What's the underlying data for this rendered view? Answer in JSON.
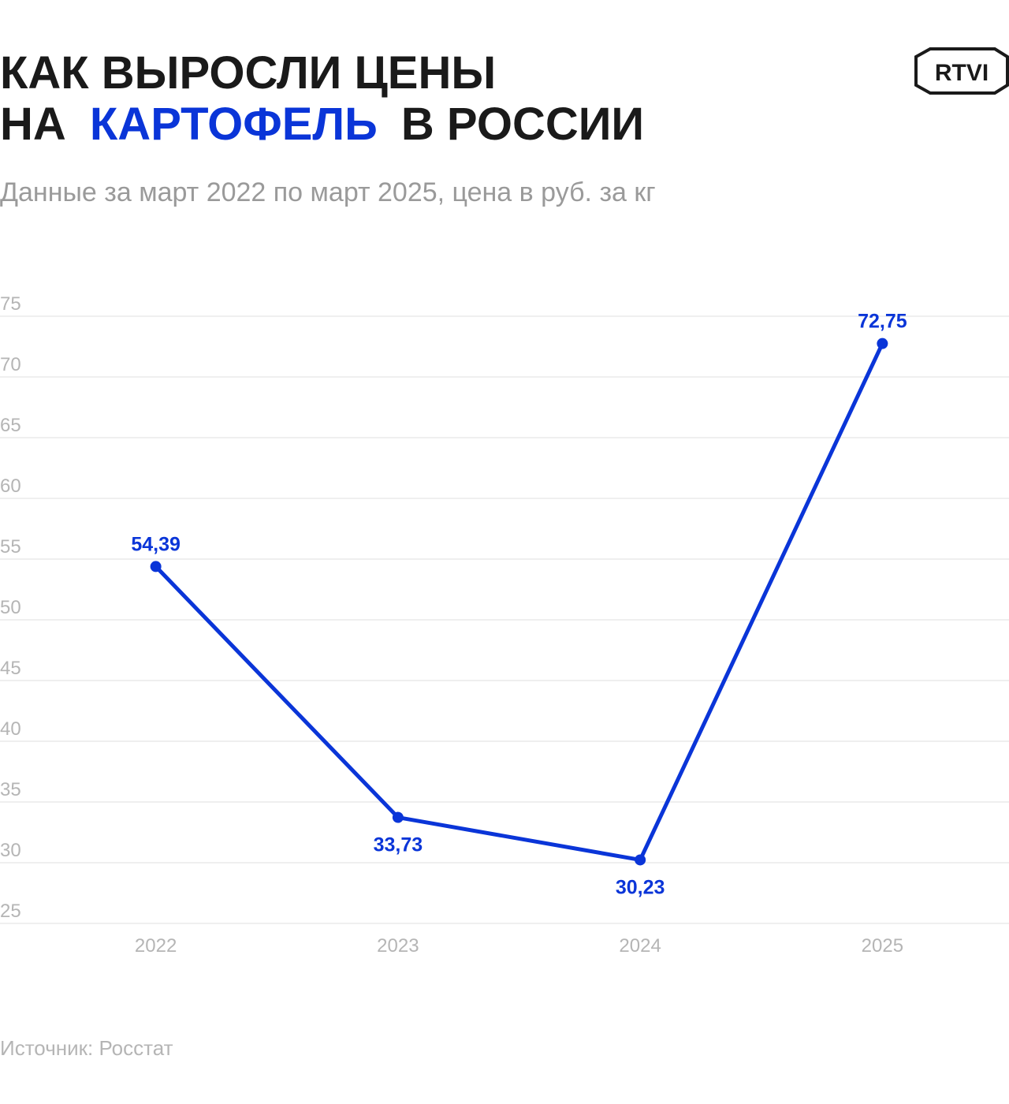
{
  "chart_data": {
    "type": "line",
    "title": [
      "КАК ВЫРОСЛИ ЦЕНЫ",
      "НА",
      "КАРТОФЕЛЬ",
      "В РОССИИ"
    ],
    "title_highlight_color": "#0a35d8",
    "subtitle": "Данные за март 2022 по март 2025, цена в руб. за кг",
    "logo": "RTVI",
    "source": "Источник: Росстат",
    "categories": [
      "2022",
      "2023",
      "2024",
      "2025"
    ],
    "series": [
      {
        "color": "#0a35d8",
        "values": [
          54.39,
          33.73,
          30.23,
          72.75
        ],
        "value_labels": [
          "54,39",
          "33,73",
          "30,23",
          "72,75"
        ]
      }
    ],
    "ylim": [
      25,
      75
    ],
    "yticks": [
      25,
      30,
      35,
      40,
      45,
      50,
      55,
      60,
      65,
      70,
      75
    ],
    "grid": true
  }
}
